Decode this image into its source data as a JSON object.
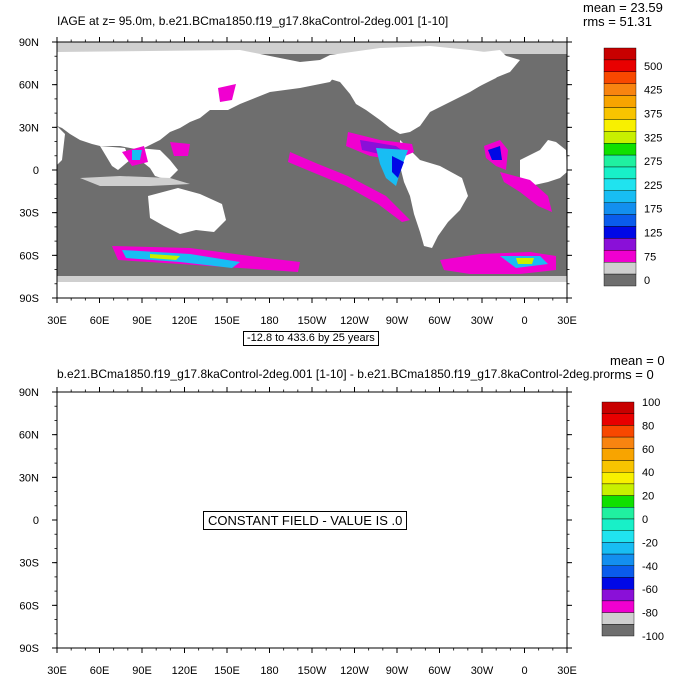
{
  "colors": [
    "#6e6e6e",
    "#cfcfcf",
    "#f000d0",
    "#8a10d8",
    "#0008e6",
    "#0a5cec",
    "#138fef",
    "#18bdf3",
    "#20e3ef",
    "#18f0c8",
    "#20f0a0",
    "#10e000",
    "#c8f000",
    "#f8f000",
    "#f8c400",
    "#f8a400",
    "#f88410",
    "#f84800",
    "#e80000",
    "#c80000"
  ],
  "panel1": {
    "title": "IAGE at z=  95.0m, b.e21.BCma1850.f19_g17.8kaControl-2deg.001 [1-10]",
    "mean_label": "mean = 23.59",
    "rms_label": "rms = 51.31",
    "range_label": "-12.8 to 433.6 by 25 years",
    "lat_labels": [
      "90N",
      "60N",
      "30N",
      "0",
      "30S",
      "60S",
      "90S"
    ],
    "lon_labels": [
      "30E",
      "60E",
      "90E",
      "120E",
      "150E",
      "180",
      "150W",
      "120W",
      "90W",
      "60W",
      "30W",
      "0",
      "30E"
    ],
    "colorbar_labels": [
      "500",
      "425",
      "375",
      "325",
      "275",
      "225",
      "175",
      "125",
      "75",
      "0"
    ]
  },
  "panel2": {
    "title": "b.e21.BCma1850.f19_g17.8kaControl-2deg.001 [1-10] - b.e21.BCma1850.f19_g17.8kaControl-2deg.pro",
    "mean_label": "mean = 0",
    "rms_label": "rms = 0",
    "constant_label": "CONSTANT FIELD - VALUE IS .0",
    "lat_labels": [
      "90N",
      "60N",
      "30N",
      "0",
      "30S",
      "60S",
      "90S"
    ],
    "lon_labels": [
      "30E",
      "60E",
      "90E",
      "120E",
      "150E",
      "180",
      "150W",
      "120W",
      "90W",
      "60W",
      "30W",
      "0",
      "30E"
    ],
    "colorbar_labels": [
      "100",
      "80",
      "60",
      "40",
      "20",
      "0",
      "-20",
      "-40",
      "-60",
      "-80",
      "-100"
    ]
  }
}
